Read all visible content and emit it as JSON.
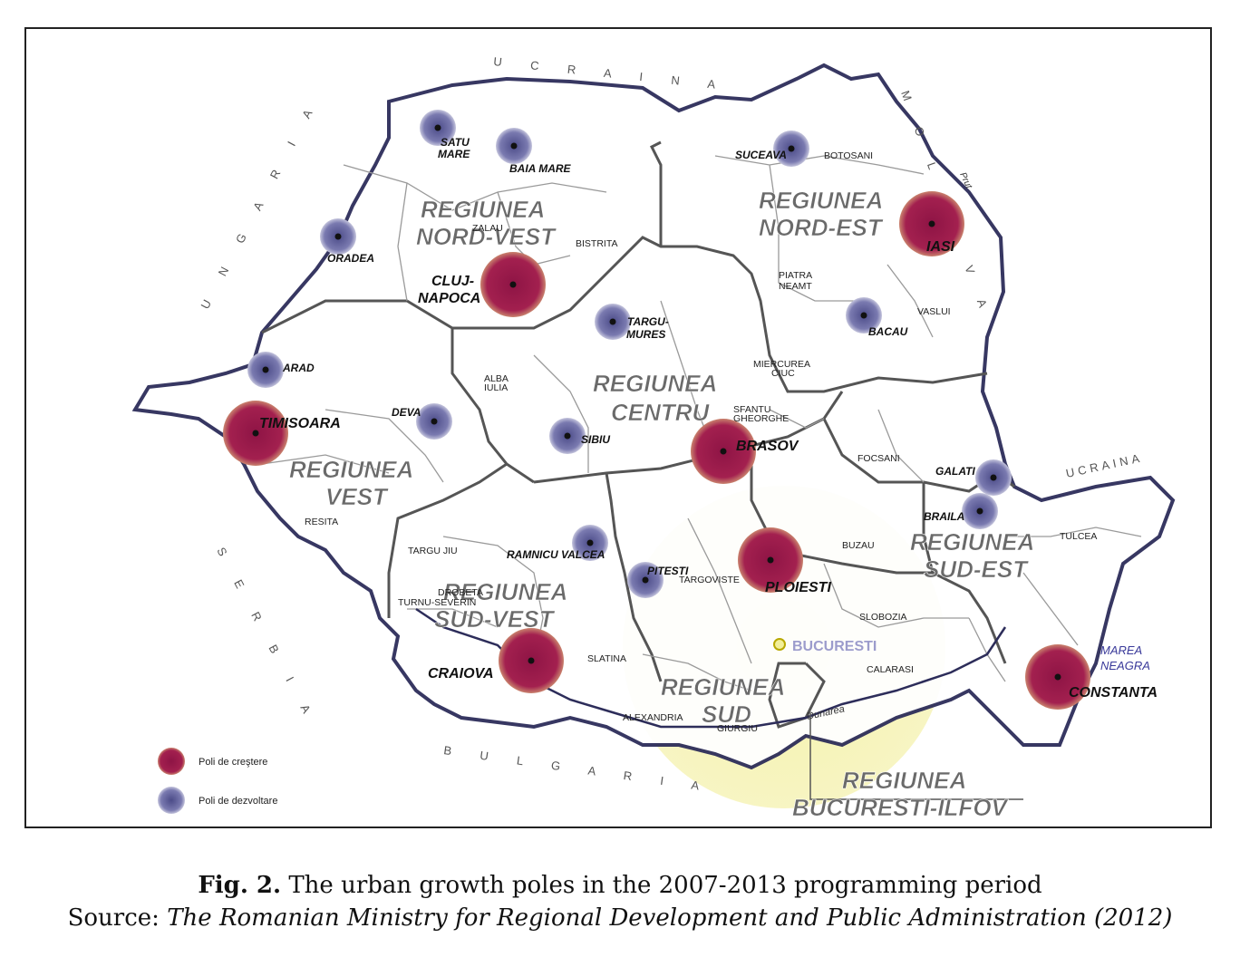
{
  "neighbors": {
    "ucraina_north": "U C R A I N A",
    "ucraina_east": "UCRAINA",
    "moldova": "M O L D O V A",
    "ungaria": "U N G A R I A",
    "serbia": "S E R B I A",
    "bulgaria": "B U L G A R I A",
    "marea_neagra_1": "MAREA",
    "marea_neagra_2": "NEAGRA",
    "dunarea": "Dunarea",
    "prut": "Prut"
  },
  "regions": {
    "nord_vest": [
      "REGIUNEA",
      "NORD-VEST"
    ],
    "nord_est": [
      "REGIUNEA",
      "NORD-EST"
    ],
    "vest": [
      "REGIUNEA",
      "VEST"
    ],
    "centru": [
      "REGIUNEA",
      "CENTRU"
    ],
    "sud_vest": [
      "REGIUNEA",
      "SUD-VEST"
    ],
    "sud": [
      "REGIUNEA",
      "SUD"
    ],
    "sud_est": [
      "REGIUNEA",
      "SUD-EST"
    ],
    "bucuresti_ilfov": [
      "REGIUNEA",
      "BUCURESTI-ILFOV"
    ]
  },
  "growth_poles": [
    "TIMISOARA",
    "CLUJ-",
    "NAPOCA",
    "IASI",
    "BRASOV",
    "PLOIESTI",
    "CRAIOVA",
    "CONSTANTA"
  ],
  "development_poles": [
    "SATU",
    "MARE",
    "BAIA MARE",
    "ORADEA",
    "ARAD",
    "DEVA",
    "SIBIU",
    "TARGU-",
    "MURES",
    "SUCEAVA",
    "BACAU",
    "GALATI",
    "BRAILA",
    "RAMNICU VALCEA",
    "PITESTI"
  ],
  "county_seats": [
    "BISTRITA",
    "ZALAU",
    "BOTOSANI",
    "PIATRA",
    "NEAMT",
    "VASLUI",
    "ALBA",
    "IULIA",
    "SFANTU",
    "GHEORGHE",
    "MIERCUREA",
    "CIUC",
    "FOCSANI",
    "BUZAU",
    "TULCEA",
    "SLOBOZIA",
    "CALARASI",
    "TARGOVISTE",
    "SLATINA",
    "ALEXANDRIA",
    "GIURGIU",
    "RESITA",
    "TARGU JIU",
    "DROBETA",
    "TURNU-SEVERIN",
    "BUCURESTI"
  ],
  "legend": {
    "growth": "Poli de creştere",
    "development": "Poli de dezvoltare",
    "growth_color": "#9b1b4d",
    "development_color": "#4a4a8a"
  },
  "caption": {
    "fig_label": "Fig. 2.",
    "title": " The urban growth poles in the 2007-2013 programming period",
    "source_label": "Source: ",
    "source": "The Romanian Ministry for Regional Development and Public Administration (2012)"
  }
}
